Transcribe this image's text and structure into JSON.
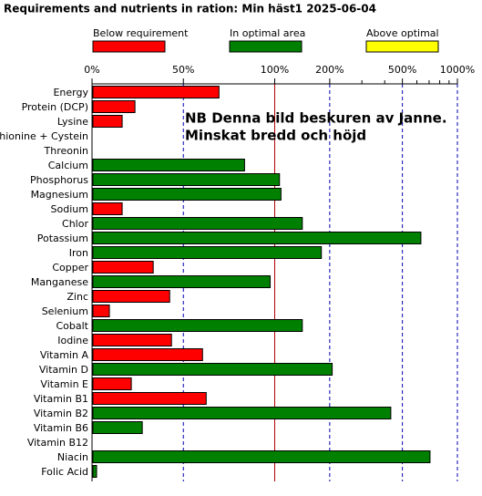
{
  "chart_data": {
    "type": "bar",
    "orientation": "horizontal",
    "title": "Requirements and nutrients in ration: Min häst1 2025-06-04",
    "legend": [
      {
        "name": "Below requirement",
        "color": "#ff0000"
      },
      {
        "name": "In optimal area",
        "color": "#008000"
      },
      {
        "name": "Above optimal",
        "color": "#ffff00"
      }
    ],
    "annotation": [
      "NB  Denna bild beskuren av Janne.",
      "Minskat bredd och höjd"
    ],
    "annotation_color": "#e8264f",
    "categories": [
      "Energy",
      "Protein (DCP)",
      "Lysine",
      "Methionine + Cystein",
      "Threonin",
      "Calcium",
      "Phosphorus",
      "Magnesium",
      "Sodium",
      "Chlor",
      "Potassium",
      "Iron",
      "Copper",
      "Manganese",
      "Zinc",
      "Selenium",
      "Cobalt",
      "Iodine",
      "Vitamin A",
      "Vitamin D",
      "Vitamin E",
      "Vitamin B1",
      "Vitamin B2",
      "Vitamin B6",
      "Vitamin B12",
      "Niacin",
      "Folic Acid"
    ],
    "values": [
      69,
      23,
      16,
      0,
      0,
      83,
      105,
      107,
      16,
      140,
      624,
      178,
      33,
      97,
      42,
      9,
      140,
      43,
      60,
      204,
      21,
      62,
      427,
      27,
      0,
      700,
      2
    ],
    "colors": [
      "#ff0000",
      "#ff0000",
      "#ff0000",
      "#ff0000",
      "#ff0000",
      "#008000",
      "#008000",
      "#008000",
      "#ff0000",
      "#008000",
      "#008000",
      "#008000",
      "#ff0000",
      "#008000",
      "#ff0000",
      "#ff0000",
      "#008000",
      "#ff0000",
      "#ff0000",
      "#008000",
      "#ff0000",
      "#ff0000",
      "#008000",
      "#008000",
      "#ff0000",
      "#008000",
      "#008000"
    ],
    "xscale": "linear-then-log",
    "xbreak": 100,
    "xlim": [
      0,
      1000
    ],
    "xticks": [
      {
        "value": 0,
        "label": "0%"
      },
      {
        "value": 50,
        "label": "50%"
      },
      {
        "value": 100,
        "label": "100%"
      },
      {
        "value": 200,
        "label": "200%"
      },
      {
        "value": 500,
        "label": "500%"
      },
      {
        "value": 1000,
        "label": "1000%"
      }
    ],
    "xminorticks": [
      300,
      400,
      600,
      700,
      800,
      900
    ],
    "break_line_color": "#b00000",
    "grid_color": "#0000b0"
  }
}
